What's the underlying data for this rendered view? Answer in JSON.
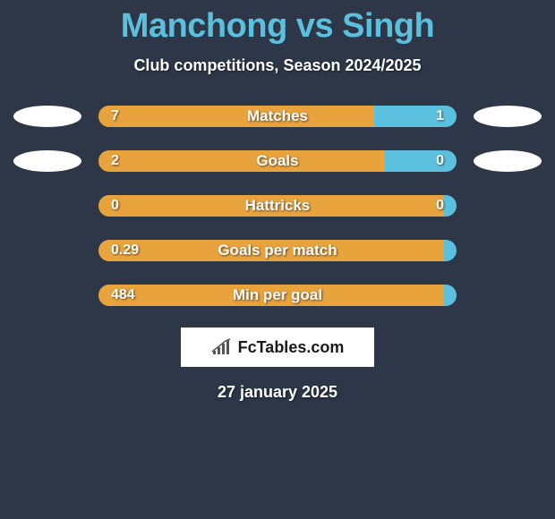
{
  "title": "Manchong vs Singh",
  "subtitle": "Club competitions, Season 2024/2025",
  "colors": {
    "background": "#2d3748",
    "title": "#5bc0de",
    "left_bar": "#e8a33d",
    "right_bar": "#5bc0de",
    "icon_fill": "#ffffff"
  },
  "stats": [
    {
      "label": "Matches",
      "left_value": "7",
      "right_value": "1",
      "left_pct": 77,
      "right_pct": 23,
      "show_left_icon": true,
      "show_right_icon": true
    },
    {
      "label": "Goals",
      "left_value": "2",
      "right_value": "0",
      "left_pct": 80,
      "right_pct": 20,
      "show_left_icon": true,
      "show_right_icon": true
    },
    {
      "label": "Hattricks",
      "left_value": "0",
      "right_value": "0",
      "left_pct": 97,
      "right_pct": 3,
      "show_left_icon": false,
      "show_right_icon": false
    },
    {
      "label": "Goals per match",
      "left_value": "0.29",
      "right_value": "",
      "left_pct": 100,
      "right_pct": 0,
      "show_left_icon": false,
      "show_right_icon": false
    },
    {
      "label": "Min per goal",
      "left_value": "484",
      "right_value": "",
      "left_pct": 100,
      "right_pct": 0,
      "show_left_icon": false,
      "show_right_icon": false
    }
  ],
  "logo_text": "FcTables.com",
  "date": "27 january 2025"
}
